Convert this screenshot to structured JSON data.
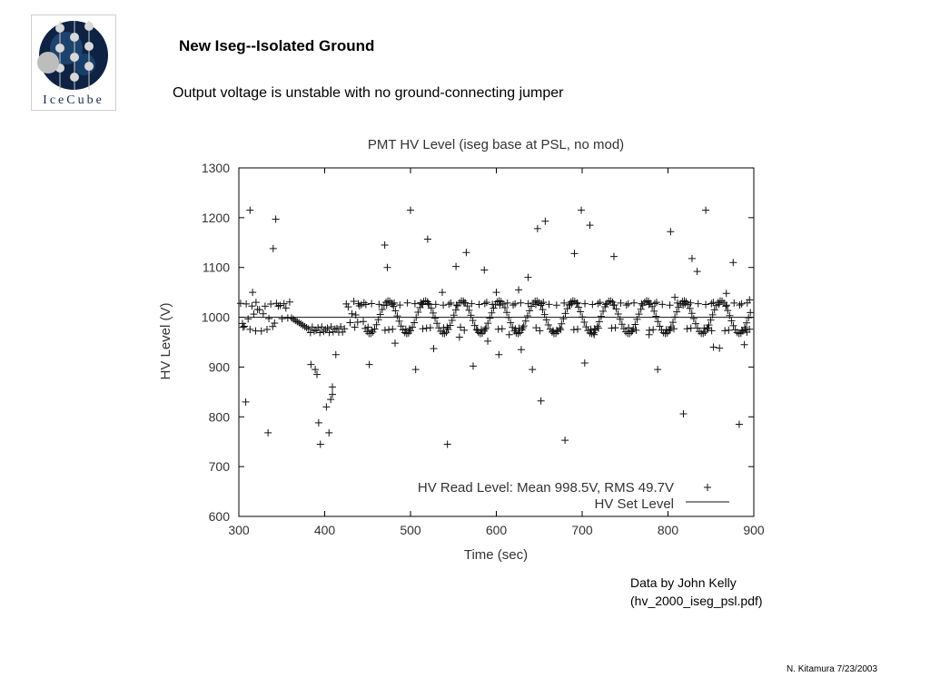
{
  "slide": {
    "title": "New Iseg--Isolated Ground",
    "subtitle": "Output voltage is unstable with no ground-connecting jumper",
    "credit_line1": "Data by John Kelly",
    "credit_line2": "(hv_2000_iseg_psl.pdf)",
    "footer": "N. Kitamura 7/23/2003"
  },
  "logo": {
    "text": "IceCube",
    "icon": "icecube-logo"
  },
  "colors": {
    "points": "#111111",
    "set_line": "#111111",
    "axis": "#000000",
    "logo_bg": "#0e2244"
  },
  "chart_data": {
    "type": "scatter",
    "title": "PMT HV Level (iseg base at PSL, no mod)",
    "xlabel": "Time (sec)",
    "ylabel": "HV Level (V)",
    "xlim": [
      300,
      900
    ],
    "ylim": [
      600,
      1300
    ],
    "xticks": [
      "300",
      "400",
      "500",
      "600",
      "700",
      "800",
      "900"
    ],
    "yticks": [
      "600",
      "700",
      "800",
      "900",
      "1000",
      "1100",
      "1200",
      "1300"
    ],
    "grid": false,
    "legend_position": "bottom-right",
    "series": [
      {
        "name": "HV Read Level: Mean 998.5V, RMS 49.7V",
        "marker": "plus",
        "outliers": [
          [
            305,
            980
          ],
          [
            308,
            830
          ],
          [
            313,
            1215
          ],
          [
            316,
            1050
          ],
          [
            320,
            1030
          ],
          [
            334,
            768
          ],
          [
            340,
            1138
          ],
          [
            343,
            1197
          ],
          [
            384,
            905
          ],
          [
            389,
            895
          ],
          [
            391,
            885
          ],
          [
            393,
            788
          ],
          [
            395,
            745
          ],
          [
            402,
            820
          ],
          [
            405,
            768
          ],
          [
            407,
            835
          ],
          [
            409,
            845
          ],
          [
            409,
            860
          ],
          [
            413,
            925
          ],
          [
            452,
            905
          ],
          [
            470,
            1145
          ],
          [
            473,
            1100
          ],
          [
            482,
            948
          ],
          [
            500,
            1215
          ],
          [
            506,
            895
          ],
          [
            520,
            1157
          ],
          [
            527,
            937
          ],
          [
            537,
            1050
          ],
          [
            543,
            745
          ],
          [
            553,
            1102
          ],
          [
            557,
            960
          ],
          [
            565,
            1130
          ],
          [
            573,
            902
          ],
          [
            586,
            1095
          ],
          [
            590,
            952
          ],
          [
            600,
            1050
          ],
          [
            603,
            925
          ],
          [
            615,
            965
          ],
          [
            626,
            1055
          ],
          [
            629,
            935
          ],
          [
            637,
            1080
          ],
          [
            642,
            895
          ],
          [
            648,
            1178
          ],
          [
            652,
            832
          ],
          [
            657,
            1193
          ],
          [
            680,
            753
          ],
          [
            691,
            1128
          ],
          [
            699,
            1215
          ],
          [
            703,
            908
          ],
          [
            709,
            1185
          ],
          [
            714,
            965
          ],
          [
            737,
            1122
          ],
          [
            778,
            965
          ],
          [
            788,
            895
          ],
          [
            803,
            1172
          ],
          [
            808,
            1040
          ],
          [
            818,
            806
          ],
          [
            828,
            1118
          ],
          [
            834,
            1092
          ],
          [
            844,
            1215
          ],
          [
            853,
            940
          ],
          [
            860,
            938
          ],
          [
            868,
            1048
          ],
          [
            876,
            1110
          ],
          [
            883,
            785
          ],
          [
            889,
            945
          ],
          [
            892,
            970
          ],
          [
            895,
            1035
          ]
        ]
      },
      {
        "name": "HV Set Level",
        "marker": "line",
        "value": 1000
      }
    ]
  }
}
